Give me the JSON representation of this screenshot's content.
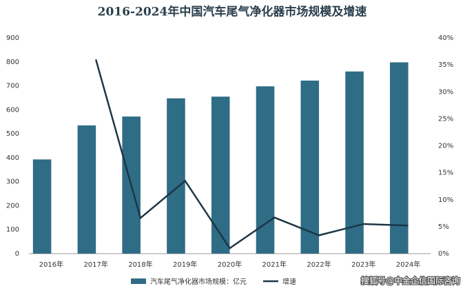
{
  "chart_data": {
    "type": "bar-line",
    "title": "2016-2024年中国汽车尾气净化器市场规模及增速",
    "categories": [
      "2016年",
      "2017年",
      "2018年",
      "2019年",
      "2020年",
      "2021年",
      "2022年",
      "2023年",
      "2024年"
    ],
    "series": [
      {
        "name": "汽车尾气净化器市场规模：亿元",
        "type": "bar",
        "color": "#2f6c86",
        "values": [
          393,
          535,
          572,
          648,
          655,
          698,
          722,
          760,
          798
        ]
      },
      {
        "name": "增速",
        "type": "line",
        "axis": "y2",
        "color": "#1c3646",
        "values": [
          null,
          36,
          6.6,
          13.5,
          1,
          6.7,
          3.4,
          5.5,
          5.2
        ]
      }
    ],
    "ylim": [
      0,
      900
    ],
    "yticks": [
      0,
      100,
      200,
      300,
      400,
      500,
      600,
      700,
      800,
      900
    ],
    "y2lim": [
      0,
      40
    ],
    "y2ticks": [
      {
        "value": 0,
        "label": "0%"
      },
      {
        "value": 5,
        "label": "5%"
      },
      {
        "value": 10,
        "label": "10%"
      },
      {
        "value": 15,
        "label": "15%"
      },
      {
        "value": 20,
        "label": "20%"
      },
      {
        "value": 25,
        "label": "25%"
      },
      {
        "value": 30,
        "label": "30%"
      },
      {
        "value": 35,
        "label": "35%"
      },
      {
        "value": 40,
        "label": "40%"
      }
    ],
    "watermark": "搜狐号@中金企信国际咨询"
  }
}
